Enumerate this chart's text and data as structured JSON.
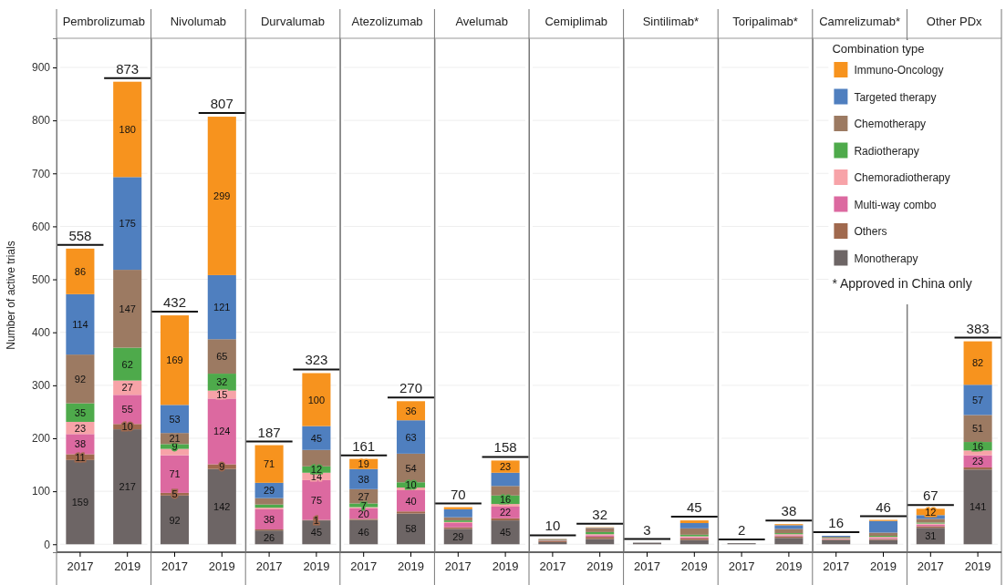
{
  "chart_data": [
    {
      "type": "bar",
      "title": "Pembrolizumab",
      "ylabel": "Number of active trials",
      "stacked": true,
      "categories": [
        "2017",
        "2019"
      ],
      "ylim": [
        -15,
        955
      ],
      "yticks": [
        0,
        100,
        200,
        300,
        400,
        500,
        600,
        700,
        800,
        900
      ],
      "grid": "y",
      "totals": [
        "558",
        "873"
      ],
      "series": [
        {
          "color": "#6d6565",
          "values": [
            159,
            217
          ],
          "value_labels": [
            "159",
            "217"
          ]
        },
        {
          "color": "#a0694e",
          "values": [
            11,
            10
          ],
          "value_labels": [
            "11",
            "10"
          ]
        },
        {
          "color": "#dc69a0",
          "values": [
            38,
            55
          ],
          "value_labels": [
            "38",
            "55"
          ]
        },
        {
          "color": "#f7a3a8",
          "values": [
            23,
            27
          ],
          "value_labels": [
            "23",
            "27"
          ]
        },
        {
          "color": "#4eaa4b",
          "values": [
            35,
            62
          ],
          "value_labels": [
            "35",
            "62"
          ]
        },
        {
          "color": "#9c7a62",
          "values": [
            92,
            147
          ],
          "value_labels": [
            "92",
            "147"
          ]
        },
        {
          "color": "#4f7fbf",
          "values": [
            114,
            175
          ],
          "value_labels": [
            "114",
            "175"
          ]
        },
        {
          "color": "#f7931e",
          "values": [
            86,
            180
          ],
          "value_labels": [
            "86",
            "180"
          ]
        }
      ]
    },
    {
      "type": "bar",
      "title": "Nivolumab",
      "stacked": true,
      "categories": [
        "2017",
        "2019"
      ],
      "ylim": [
        -15,
        955
      ],
      "yticks": [
        0,
        100,
        200,
        300,
        400,
        500,
        600,
        700,
        800,
        900
      ],
      "tick_labels": "x",
      "grid": "y",
      "totals": [
        "432",
        "807"
      ],
      "series": [
        {
          "color": "#6d6565",
          "values": [
            92,
            142
          ],
          "value_labels": [
            "92",
            "142"
          ]
        },
        {
          "color": "#a0694e",
          "values": [
            5,
            9
          ],
          "value_labels": [
            "5",
            "9"
          ]
        },
        {
          "color": "#dc69a0",
          "values": [
            71,
            124
          ],
          "value_labels": [
            "71",
            "124"
          ]
        },
        {
          "color": "#f7a3a8",
          "values": [
            12,
            15
          ],
          "value_labels": [
            null,
            "15"
          ]
        },
        {
          "color": "#4eaa4b",
          "values": [
            9,
            32
          ],
          "value_labels": [
            "9",
            "32"
          ]
        },
        {
          "color": "#9c7a62",
          "values": [
            21,
            65
          ],
          "value_labels": [
            "21",
            "65"
          ]
        },
        {
          "color": "#4f7fbf",
          "values": [
            53,
            121
          ],
          "value_labels": [
            "53",
            "121"
          ]
        },
        {
          "color": "#f7931e",
          "values": [
            169,
            299
          ],
          "value_labels": [
            "169",
            "299"
          ]
        }
      ]
    },
    {
      "type": "bar",
      "title": "Durvalumab",
      "stacked": true,
      "categories": [
        "2017",
        "2019"
      ],
      "ylim": [
        -15,
        955
      ],
      "yticks": [
        0,
        100,
        200,
        300,
        400,
        500,
        600,
        700,
        800,
        900
      ],
      "tick_labels": "x",
      "grid": "y",
      "totals": [
        "187",
        "323"
      ],
      "series": [
        {
          "color": "#6d6565",
          "values": [
            26,
            45
          ],
          "value_labels": [
            "26",
            "45"
          ]
        },
        {
          "color": "#a0694e",
          "values": [
            2,
            1
          ],
          "value_labels": [
            null,
            "1"
          ]
        },
        {
          "color": "#dc69a0",
          "values": [
            38,
            75
          ],
          "value_labels": [
            "38",
            "75"
          ]
        },
        {
          "color": "#f7a3a8",
          "values": [
            3,
            14
          ],
          "value_labels": [
            null,
            "14"
          ]
        },
        {
          "color": "#4eaa4b",
          "values": [
            6,
            12
          ],
          "value_labels": [
            null,
            "12"
          ]
        },
        {
          "color": "#9c7a62",
          "values": [
            12,
            31
          ],
          "value_labels": [
            null,
            null
          ]
        },
        {
          "color": "#4f7fbf",
          "values": [
            29,
            45
          ],
          "value_labels": [
            "29",
            "45"
          ]
        },
        {
          "color": "#f7931e",
          "values": [
            71,
            100
          ],
          "value_labels": [
            "71",
            "100"
          ]
        }
      ]
    },
    {
      "type": "bar",
      "title": "Atezolizumab",
      "stacked": true,
      "categories": [
        "2017",
        "2019"
      ],
      "ylim": [
        -15,
        955
      ],
      "yticks": [
        0,
        100,
        200,
        300,
        400,
        500,
        600,
        700,
        800,
        900
      ],
      "tick_labels": "x",
      "grid": "y",
      "totals": [
        "161",
        "270"
      ],
      "series": [
        {
          "color": "#6d6565",
          "values": [
            46,
            58
          ],
          "value_labels": [
            "46",
            "58"
          ]
        },
        {
          "color": "#a0694e",
          "values": [
            2,
            4
          ],
          "value_labels": [
            null,
            null
          ]
        },
        {
          "color": "#dc69a0",
          "values": [
            20,
            40
          ],
          "value_labels": [
            "20",
            "40"
          ]
        },
        {
          "color": "#f7a3a8",
          "values": [
            2,
            5
          ],
          "value_labels": [
            null,
            null
          ]
        },
        {
          "color": "#4eaa4b",
          "values": [
            7,
            10
          ],
          "value_labels": [
            "7",
            "10"
          ]
        },
        {
          "color": "#9c7a62",
          "values": [
            27,
            54
          ],
          "value_labels": [
            "27",
            "54"
          ]
        },
        {
          "color": "#4f7fbf",
          "values": [
            38,
            63
          ],
          "value_labels": [
            "38",
            "63"
          ]
        },
        {
          "color": "#f7931e",
          "values": [
            19,
            36
          ],
          "value_labels": [
            "19",
            "36"
          ]
        }
      ]
    },
    {
      "type": "bar",
      "title": "Avelumab",
      "stacked": true,
      "categories": [
        "2017",
        "2019"
      ],
      "ylim": [
        -15,
        955
      ],
      "yticks": [
        0,
        100,
        200,
        300,
        400,
        500,
        600,
        700,
        800,
        900
      ],
      "tick_labels": "x",
      "grid": "y",
      "totals": [
        "70",
        "158"
      ],
      "series": [
        {
          "color": "#6d6565",
          "values": [
            29,
            45
          ],
          "value_labels": [
            "29",
            "45"
          ]
        },
        {
          "color": "#a0694e",
          "values": [
            3,
            4
          ],
          "value_labels": [
            null,
            null
          ]
        },
        {
          "color": "#dc69a0",
          "values": [
            8,
            22
          ],
          "value_labels": [
            null,
            "22"
          ]
        },
        {
          "color": "#f7a3a8",
          "values": [
            2,
            5
          ],
          "value_labels": [
            null,
            null
          ]
        },
        {
          "color": "#4eaa4b",
          "values": [
            3,
            16
          ],
          "value_labels": [
            null,
            "16"
          ]
        },
        {
          "color": "#9c7a62",
          "values": [
            6,
            18
          ],
          "value_labels": [
            null,
            null
          ]
        },
        {
          "color": "#4f7fbf",
          "values": [
            15,
            25
          ],
          "value_labels": [
            null,
            null
          ]
        },
        {
          "color": "#f7931e",
          "values": [
            4,
            23
          ],
          "value_labels": [
            null,
            "23"
          ]
        }
      ]
    },
    {
      "type": "bar",
      "title": "Cemiplimab",
      "stacked": true,
      "categories": [
        "2017",
        "2019"
      ],
      "ylim": [
        -15,
        955
      ],
      "yticks": [
        0,
        100,
        200,
        300,
        400,
        500,
        600,
        700,
        800,
        900
      ],
      "tick_labels": "x",
      "grid": "y",
      "totals": [
        "10",
        "32"
      ],
      "series": [
        {
          "color": "#6d6565",
          "values": [
            4,
            10
          ]
        },
        {
          "color": "#a0694e",
          "values": [
            2,
            4
          ]
        },
        {
          "color": "#dc69a0",
          "values": [
            1,
            3
          ]
        },
        {
          "color": "#f7a3a8",
          "values": [
            0,
            2
          ]
        },
        {
          "color": "#4eaa4b",
          "values": [
            1,
            4
          ]
        },
        {
          "color": "#9c7a62",
          "values": [
            2,
            7
          ]
        },
        {
          "color": "#4f7fbf",
          "values": [
            0,
            1
          ]
        },
        {
          "color": "#f7931e",
          "values": [
            0,
            1
          ]
        }
      ]
    },
    {
      "type": "bar",
      "title": "Sintilimab*",
      "stacked": true,
      "categories": [
        "2017",
        "2019"
      ],
      "ylim": [
        -15,
        955
      ],
      "yticks": [
        0,
        100,
        200,
        300,
        400,
        500,
        600,
        700,
        800,
        900
      ],
      "tick_labels": "x",
      "grid": "y",
      "totals": [
        "3",
        "45"
      ],
      "series": [
        {
          "color": "#6d6565",
          "values": [
            3,
            8
          ]
        },
        {
          "color": "#a0694e",
          "values": [
            0,
            3
          ]
        },
        {
          "color": "#dc69a0",
          "values": [
            0,
            2
          ]
        },
        {
          "color": "#f7a3a8",
          "values": [
            0,
            2
          ]
        },
        {
          "color": "#4eaa4b",
          "values": [
            0,
            3
          ]
        },
        {
          "color": "#9c7a62",
          "values": [
            0,
            12
          ]
        },
        {
          "color": "#4f7fbf",
          "values": [
            0,
            10
          ]
        },
        {
          "color": "#f7931e",
          "values": [
            0,
            5
          ]
        }
      ]
    },
    {
      "type": "bar",
      "title": "Toripalimab*",
      "stacked": true,
      "categories": [
        "2017",
        "2019"
      ],
      "ylim": [
        -15,
        955
      ],
      "yticks": [
        0,
        100,
        200,
        300,
        400,
        500,
        600,
        700,
        800,
        900
      ],
      "tick_labels": "x",
      "grid": "y",
      "totals": [
        "2",
        "38"
      ],
      "series": [
        {
          "color": "#6d6565",
          "values": [
            2,
            12
          ]
        },
        {
          "color": "#a0694e",
          "values": [
            0,
            3
          ]
        },
        {
          "color": "#dc69a0",
          "values": [
            0,
            2
          ]
        },
        {
          "color": "#f7a3a8",
          "values": [
            0,
            2
          ]
        },
        {
          "color": "#4eaa4b",
          "values": [
            0,
            2
          ]
        },
        {
          "color": "#9c7a62",
          "values": [
            0,
            8
          ]
        },
        {
          "color": "#4f7fbf",
          "values": [
            0,
            7
          ]
        },
        {
          "color": "#f7931e",
          "values": [
            0,
            2
          ]
        }
      ]
    },
    {
      "type": "bar",
      "title": "Camrelizumab*",
      "stacked": true,
      "categories": [
        "2017",
        "2019"
      ],
      "ylim": [
        -15,
        955
      ],
      "yticks": [
        0,
        100,
        200,
        300,
        400,
        500,
        600,
        700,
        800,
        900
      ],
      "tick_labels": "x",
      "grid": "y",
      "totals": [
        "16",
        "46"
      ],
      "series": [
        {
          "color": "#6d6565",
          "values": [
            8,
            8
          ]
        },
        {
          "color": "#a0694e",
          "values": [
            1,
            2
          ]
        },
        {
          "color": "#dc69a0",
          "values": [
            1,
            2
          ]
        },
        {
          "color": "#f7a3a8",
          "values": [
            1,
            2
          ]
        },
        {
          "color": "#4eaa4b",
          "values": [
            1,
            2
          ]
        },
        {
          "color": "#9c7a62",
          "values": [
            2,
            6
          ]
        },
        {
          "color": "#4f7fbf",
          "values": [
            2,
            22
          ]
        },
        {
          "color": "#f7931e",
          "values": [
            0,
            2
          ]
        }
      ]
    },
    {
      "type": "bar",
      "title": "Other PDx",
      "stacked": true,
      "categories": [
        "2017",
        "2019"
      ],
      "ylim": [
        -15,
        955
      ],
      "yticks": [
        0,
        100,
        200,
        300,
        400,
        500,
        600,
        700,
        800,
        900
      ],
      "tick_labels": "x",
      "grid": "y",
      "totals": [
        "67",
        "383"
      ],
      "legend": "top left",
      "legend_title": "Combination type",
      "annotations": [
        "* Approved in China only"
      ],
      "series": [
        {
          "name": "Monotherapy",
          "color": "#6d6565",
          "values": [
            31,
            141
          ],
          "value_labels": [
            "31",
            "141"
          ]
        },
        {
          "name": "Others",
          "color": "#a0694e",
          "values": [
            3,
            4
          ],
          "value_labels": [
            null,
            null
          ]
        },
        {
          "name": "Multi-way combo",
          "color": "#dc69a0",
          "values": [
            3,
            23
          ],
          "value_labels": [
            null,
            "23"
          ]
        },
        {
          "name": "Chemoradiotherapy",
          "color": "#f7a3a8",
          "values": [
            2,
            9
          ],
          "value_labels": [
            null,
            null
          ]
        },
        {
          "name": "Radiotherapy",
          "color": "#4eaa4b",
          "values": [
            2,
            16
          ],
          "value_labels": [
            null,
            "16"
          ]
        },
        {
          "name": "Chemotherapy",
          "color": "#9c7a62",
          "values": [
            7,
            51
          ],
          "value_labels": [
            null,
            "51"
          ]
        },
        {
          "name": "Targeted therapy",
          "color": "#4f7fbf",
          "values": [
            7,
            57
          ],
          "value_labels": [
            null,
            "57"
          ]
        },
        {
          "name": "Immuno-Oncology",
          "color": "#f7931e",
          "values": [
            12,
            82
          ],
          "value_labels": [
            "12",
            "82"
          ]
        }
      ]
    }
  ]
}
